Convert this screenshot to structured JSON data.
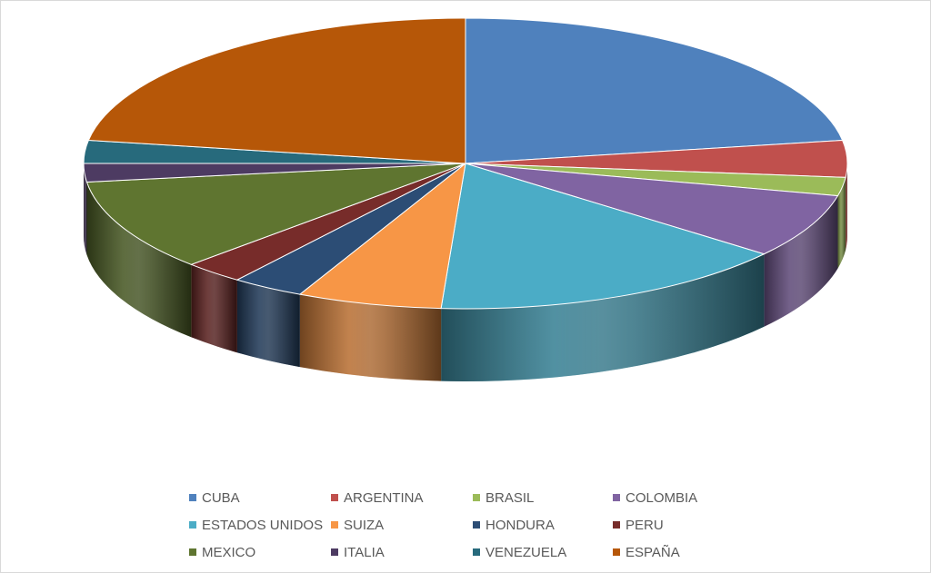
{
  "chart_data": {
    "type": "pie",
    "three_d": true,
    "title": "",
    "legend_position": "bottom",
    "categories": [
      "CUBA",
      "ARGENTINA",
      "BRASIL",
      "COLOMBIA",
      "ESTADOS UNIDOS",
      "SUIZA",
      "HONDURA",
      "PERU",
      "MEXICO",
      "ITALIA",
      "VENEZUELA",
      "ESPAÑA"
    ],
    "values": [
      22,
      4,
      2,
      7,
      15,
      6,
      3,
      2.5,
      10,
      2,
      2.5,
      22
    ],
    "colors": [
      "#4f81bd",
      "#c0504d",
      "#9bbb59",
      "#8064a2",
      "#4bacc6",
      "#f79646",
      "#2c4d75",
      "#772c2a",
      "#5f7530",
      "#4d3b62",
      "#276a7c",
      "#b65708"
    ]
  }
}
